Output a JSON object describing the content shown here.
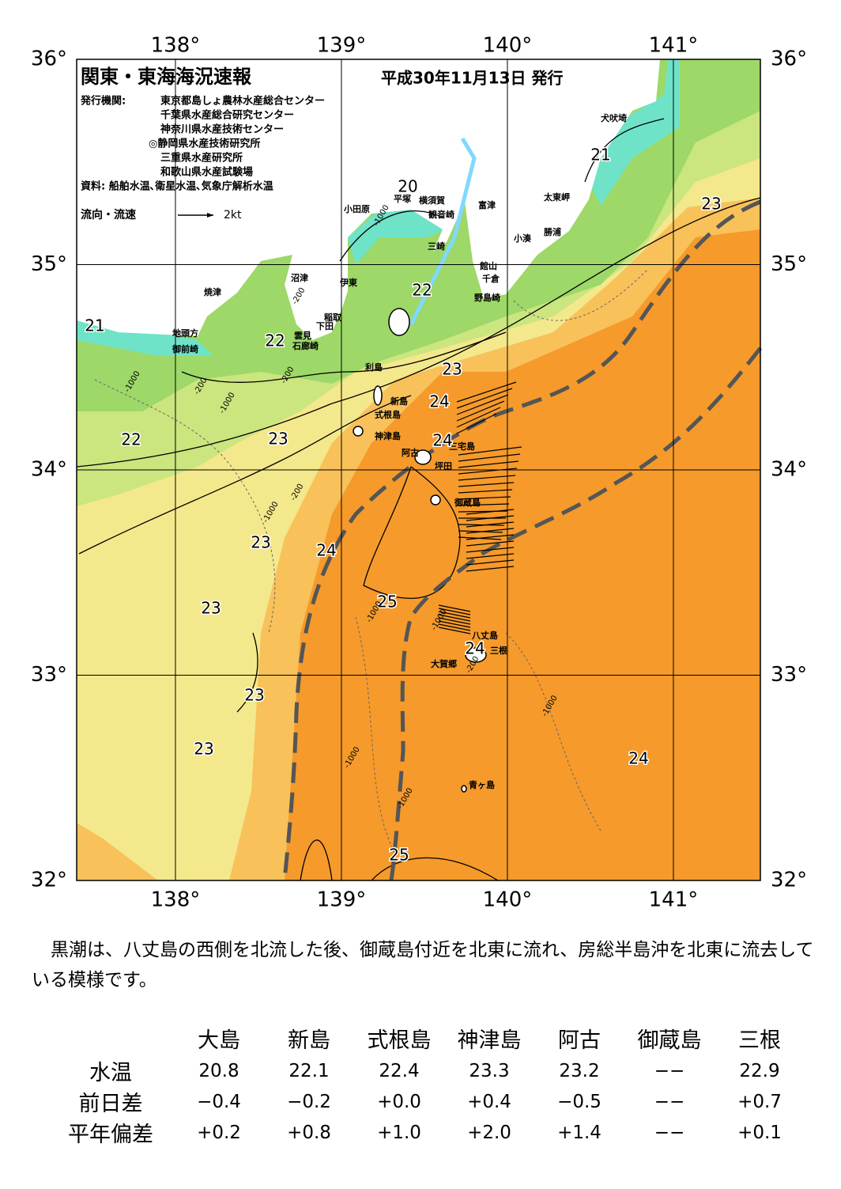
{
  "map": {
    "title": "関東・東海海況速報",
    "issued": "平成30年11月13日 発行",
    "publisher_label": "発行機関:",
    "publishers": [
      "東京都島しょ農林水産総合センター",
      "千葉県水産総合研究センター",
      "神奈川県水産技術センター",
      "◎静岡県水産技術研究所",
      "三重県水産研究所",
      "和歌山県水産試験場"
    ],
    "sources": "資料: 船舶水温､衛星水温､気象庁解析水温",
    "legend_label": "流向・流速",
    "legend_scale": "2kt",
    "lat_ticks": [
      {
        "value": 36,
        "label": "36°"
      },
      {
        "value": 35,
        "label": "35°"
      },
      {
        "value": 34,
        "label": "34°"
      },
      {
        "value": 33,
        "label": "33°"
      },
      {
        "value": 32,
        "label": "32°"
      }
    ],
    "lon_ticks": [
      {
        "value": 138,
        "label": "138°"
      },
      {
        "value": 139,
        "label": "139°"
      },
      {
        "value": 140,
        "label": "140°"
      },
      {
        "value": 141,
        "label": "141°"
      }
    ],
    "places": [
      "犬吠埼",
      "太東岬",
      "勝浦",
      "小湊",
      "富津",
      "館山",
      "千倉",
      "野島崎",
      "横須賀",
      "観音崎",
      "平塚",
      "小田原",
      "三崎",
      "沼津",
      "伊東",
      "焼津",
      "稲取",
      "下田",
      "雲見",
      "石廊崎",
      "地頭方",
      "御前崎",
      "利島",
      "新島",
      "式根島",
      "神津島",
      "三宅島",
      "阿古",
      "坪田",
      "御蔵島",
      "八丈島",
      "三根",
      "大賀郷",
      "青ヶ島"
    ],
    "isotherm_labels": [
      20,
      21,
      21,
      23,
      22,
      22,
      22,
      23,
      24,
      24,
      23,
      23,
      24,
      23,
      25,
      24,
      23,
      23,
      24,
      25
    ],
    "depth_labels": [
      "-200",
      "-1000",
      "-200",
      "-1000",
      "-200",
      "-1000",
      "-1000",
      "-200",
      "-1000",
      "-1000",
      "-1000",
      "-1000",
      "-1000",
      "-200"
    ]
  },
  "summary": "黒潮は、八丈島の西側を北流した後、御蔵島付近を北東に流れ、房総半島沖を北東に流去している模様です。",
  "table": {
    "columns": [
      "大島",
      "新島",
      "式根島",
      "神津島",
      "阿古",
      "御蔵島",
      "三根"
    ],
    "rows": [
      {
        "label": "水温",
        "values": [
          "20.8",
          "22.1",
          "22.4",
          "23.3",
          "23.2",
          "−−",
          "22.9"
        ]
      },
      {
        "label": "前日差",
        "values": [
          "−0.4",
          "−0.2",
          "+0.0",
          "+0.4",
          "−0.5",
          "−−",
          "+0.7"
        ]
      },
      {
        "label": "平年偏差",
        "values": [
          "+0.2",
          "+0.8",
          "+1.0",
          "+2.0",
          "+1.4",
          "−−",
          "+0.1"
        ]
      }
    ]
  }
}
